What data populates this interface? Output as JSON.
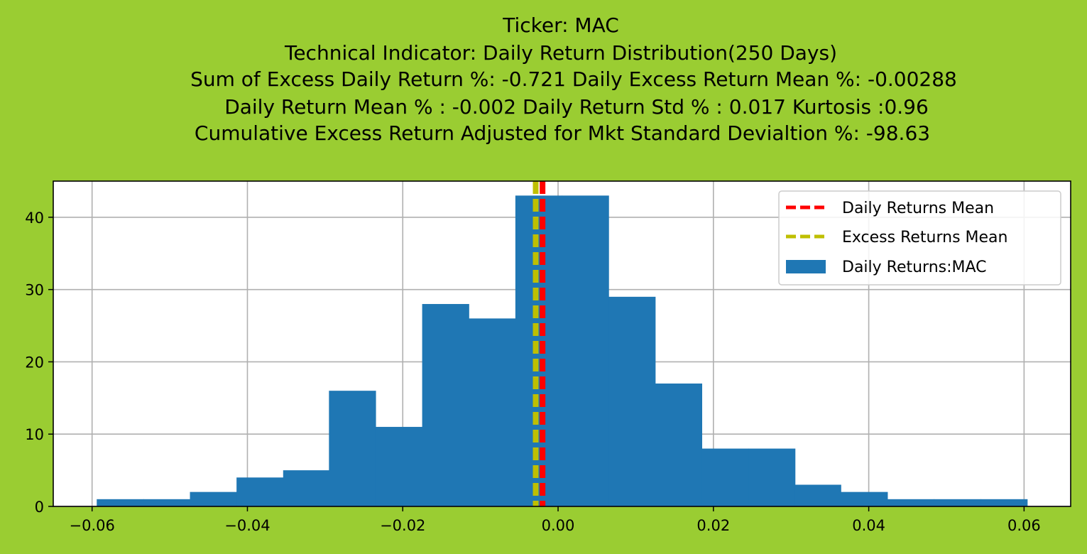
{
  "chart_data": {
    "type": "bar",
    "title_lines": [
      "Ticker: MAC",
      "Technical Indicator: Daily Return Distribution(250 Days)",
      "Sum of Excess Daily Return %: -0.721   Daily Excess Return Mean %: -0.00288",
      "Daily Return Mean % : -0.002    Daily Return Std % : 0.017  Kurtosis :0.96",
      "Cumulative Excess Return Adjusted for Mkt Standard Devialtion %: -98.63"
    ],
    "xlabel": "",
    "ylabel": "",
    "xlim": [
      -0.065,
      0.066
    ],
    "ylim": [
      0,
      45
    ],
    "grid": true,
    "legend_position": "top-right",
    "x_ticks": [
      -0.06,
      -0.04,
      -0.02,
      0.0,
      0.02,
      0.04,
      0.06
    ],
    "x_tick_labels": [
      "−0.06",
      "−0.04",
      "−0.02",
      "0.00",
      "0.02",
      "0.04",
      "0.06"
    ],
    "y_ticks": [
      0,
      10,
      20,
      30,
      40
    ],
    "y_tick_labels": [
      "0",
      "10",
      "20",
      "30",
      "40"
    ],
    "bin_edges": [
      -0.0594,
      -0.0534,
      -0.0474,
      -0.0414,
      -0.0354,
      -0.0295,
      -0.0235,
      -0.0175,
      -0.0115,
      -0.0055,
      0.0005,
      0.0065,
      0.0125,
      0.0185,
      0.0245,
      0.0305,
      0.0364,
      0.0424,
      0.0484,
      0.0544,
      0.0604
    ],
    "series": [
      {
        "name": "Daily Returns:MAC",
        "kind": "histogram",
        "color": "#1F77B4",
        "values": [
          1,
          1,
          2,
          4,
          5,
          16,
          11,
          28,
          26,
          43,
          43,
          29,
          17,
          8,
          8,
          3,
          2,
          1,
          1,
          1
        ]
      }
    ],
    "vlines": [
      {
        "name": "Daily Returns Mean",
        "x": -0.002,
        "color": "#FF0000",
        "style": "dashed"
      },
      {
        "name": "Excess Returns Mean",
        "x": -0.00288,
        "color": "#BFBF00",
        "style": "dashed"
      }
    ]
  }
}
